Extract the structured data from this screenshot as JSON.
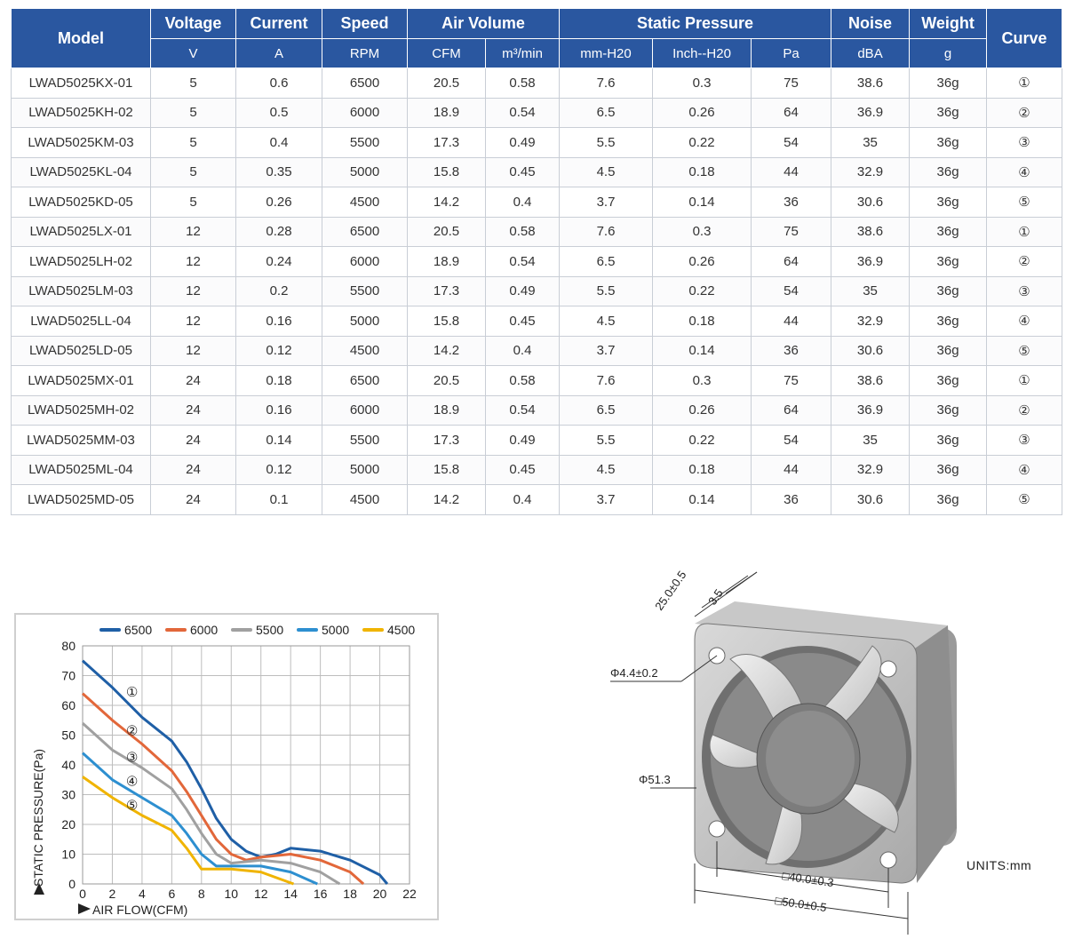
{
  "table": {
    "header_top": [
      "Model",
      "Voltage",
      "Current",
      "Speed",
      "Air Volume",
      "Static Pressure",
      "Noise",
      "Weight",
      "Curve"
    ],
    "header_units": [
      "V",
      "A",
      "RPM",
      "CFM",
      "m³/min",
      "mm-H20",
      "Inch--H20",
      "Pa",
      "dBA",
      "g"
    ],
    "rows": [
      [
        "LWAD5025KX-01",
        "5",
        "0.6",
        "6500",
        "20.5",
        "0.58",
        "7.6",
        "0.3",
        "75",
        "38.6",
        "36g",
        "①"
      ],
      [
        "LWAD5025KH-02",
        "5",
        "0.5",
        "6000",
        "18.9",
        "0.54",
        "6.5",
        "0.26",
        "64",
        "36.9",
        "36g",
        "②"
      ],
      [
        "LWAD5025KM-03",
        "5",
        "0.4",
        "5500",
        "17.3",
        "0.49",
        "5.5",
        "0.22",
        "54",
        "35",
        "36g",
        "③"
      ],
      [
        "LWAD5025KL-04",
        "5",
        "0.35",
        "5000",
        "15.8",
        "0.45",
        "4.5",
        "0.18",
        "44",
        "32.9",
        "36g",
        "④"
      ],
      [
        "LWAD5025KD-05",
        "5",
        "0.26",
        "4500",
        "14.2",
        "0.4",
        "3.7",
        "0.14",
        "36",
        "30.6",
        "36g",
        "⑤"
      ],
      [
        "LWAD5025LX-01",
        "12",
        "0.28",
        "6500",
        "20.5",
        "0.58",
        "7.6",
        "0.3",
        "75",
        "38.6",
        "36g",
        "①"
      ],
      [
        "LWAD5025LH-02",
        "12",
        "0.24",
        "6000",
        "18.9",
        "0.54",
        "6.5",
        "0.26",
        "64",
        "36.9",
        "36g",
        "②"
      ],
      [
        "LWAD5025LM-03",
        "12",
        "0.2",
        "5500",
        "17.3",
        "0.49",
        "5.5",
        "0.22",
        "54",
        "35",
        "36g",
        "③"
      ],
      [
        "LWAD5025LL-04",
        "12",
        "0.16",
        "5000",
        "15.8",
        "0.45",
        "4.5",
        "0.18",
        "44",
        "32.9",
        "36g",
        "④"
      ],
      [
        "LWAD5025LD-05",
        "12",
        "0.12",
        "4500",
        "14.2",
        "0.4",
        "3.7",
        "0.14",
        "36",
        "30.6",
        "36g",
        "⑤"
      ],
      [
        "LWAD5025MX-01",
        "24",
        "0.18",
        "6500",
        "20.5",
        "0.58",
        "7.6",
        "0.3",
        "75",
        "38.6",
        "36g",
        "①"
      ],
      [
        "LWAD5025MH-02",
        "24",
        "0.16",
        "6000",
        "18.9",
        "0.54",
        "6.5",
        "0.26",
        "64",
        "36.9",
        "36g",
        "②"
      ],
      [
        "LWAD5025MM-03",
        "24",
        "0.14",
        "5500",
        "17.3",
        "0.49",
        "5.5",
        "0.22",
        "54",
        "35",
        "36g",
        "③"
      ],
      [
        "LWAD5025ML-04",
        "24",
        "0.12",
        "5000",
        "15.8",
        "0.45",
        "4.5",
        "0.18",
        "44",
        "32.9",
        "36g",
        "④"
      ],
      [
        "LWAD5025MD-05",
        "24",
        "0.1",
        "4500",
        "14.2",
        "0.4",
        "3.7",
        "0.14",
        "36",
        "30.6",
        "36g",
        "⑤"
      ]
    ]
  },
  "chart_data": {
    "type": "line",
    "title": "",
    "xlabel": "AIR FLOW(CFM)",
    "ylabel": "STATIC PRESSURE(Pa)",
    "xlim": [
      0,
      22
    ],
    "ylim": [
      0,
      80
    ],
    "xticks": [
      "0",
      "2",
      "4",
      "6",
      "8",
      "10",
      "12",
      "14",
      "16",
      "18",
      "20",
      "22"
    ],
    "yticks": [
      "0",
      "10",
      "20",
      "30",
      "40",
      "50",
      "60",
      "70",
      "80"
    ],
    "grid": true,
    "legend_position": "top",
    "series": [
      {
        "name": "6500",
        "color": "#1f5fa6",
        "marker": "①",
        "x": [
          0,
          2,
          4,
          6,
          7,
          8,
          9,
          10,
          11,
          12,
          13,
          14,
          16,
          18,
          20,
          20.5
        ],
        "y": [
          75,
          66,
          56,
          48,
          41,
          32,
          22,
          15,
          11,
          9,
          10,
          12,
          11,
          8,
          3,
          0
        ]
      },
      {
        "name": "6000",
        "color": "#e2673a",
        "marker": "②",
        "x": [
          0,
          2,
          4,
          6,
          7,
          8,
          9,
          10,
          11,
          12,
          14,
          16,
          18,
          18.9
        ],
        "y": [
          64,
          55,
          47,
          38,
          31,
          23,
          15,
          10,
          8,
          9,
          10,
          8,
          4,
          0
        ]
      },
      {
        "name": "5500",
        "color": "#a0a0a0",
        "marker": "③",
        "x": [
          0,
          2,
          4,
          6,
          7,
          8,
          9,
          10,
          12,
          14,
          16,
          17.3
        ],
        "y": [
          54,
          45,
          39,
          32,
          25,
          17,
          10,
          7,
          8,
          7,
          4,
          0
        ]
      },
      {
        "name": "5000",
        "color": "#2d8fd0",
        "marker": "④",
        "x": [
          0,
          2,
          4,
          6,
          7,
          8,
          9,
          10,
          12,
          14,
          15.8
        ],
        "y": [
          44,
          35,
          29,
          23,
          17,
          10,
          6,
          6,
          6,
          4,
          0
        ]
      },
      {
        "name": "4500",
        "color": "#f0b400",
        "marker": "⑤",
        "x": [
          0,
          2,
          4,
          6,
          7,
          8,
          9,
          10,
          12,
          14.2
        ],
        "y": [
          36,
          29,
          23,
          18,
          12,
          5,
          5,
          5,
          4,
          0
        ]
      }
    ]
  },
  "drawing": {
    "dimensions": {
      "depth": "25.0±0.5",
      "flange": "3.5",
      "hole": "Φ4.4±0.2",
      "bore": "Φ51.3",
      "hole_pitch": "□40.0±0.3",
      "frame": "□50.0±0.5"
    },
    "units": "UNITS:mm"
  }
}
